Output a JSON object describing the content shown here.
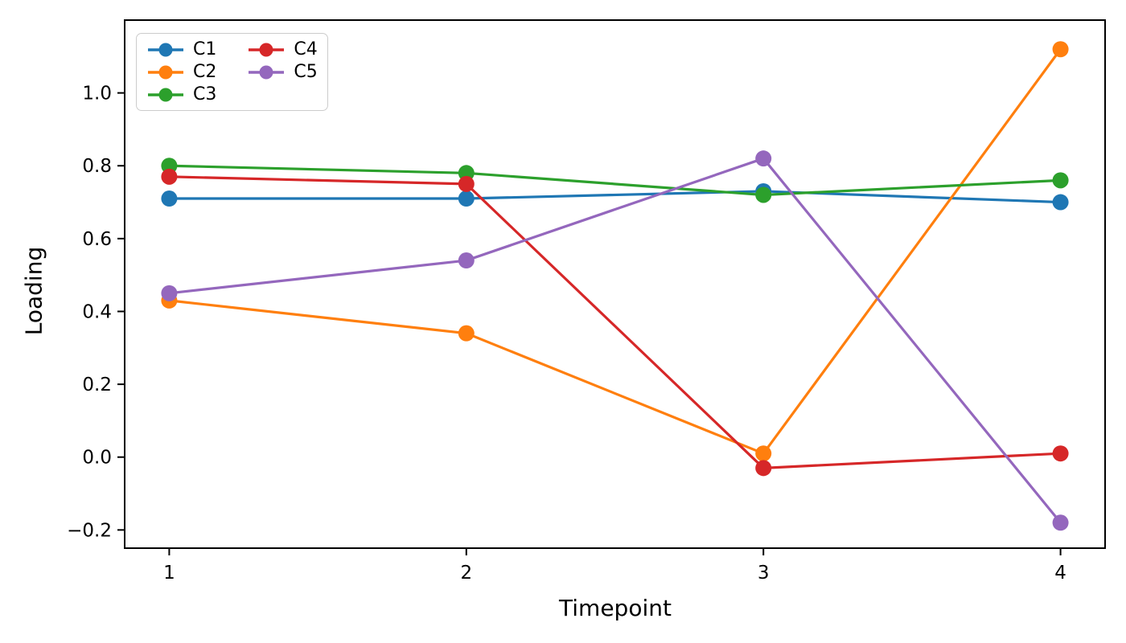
{
  "chart_data": {
    "type": "line",
    "title": "",
    "xlabel": "Timepoint",
    "ylabel": "Loading",
    "x": [
      1,
      2,
      3,
      4
    ],
    "series": [
      {
        "name": "C1",
        "color": "#1f77b4",
        "values": [
          0.71,
          0.71,
          0.73,
          0.7
        ]
      },
      {
        "name": "C2",
        "color": "#ff7f0e",
        "values": [
          0.43,
          0.34,
          0.01,
          1.12
        ]
      },
      {
        "name": "C3",
        "color": "#2ca02c",
        "values": [
          0.8,
          0.78,
          0.72,
          0.76
        ]
      },
      {
        "name": "C4",
        "color": "#d62728",
        "values": [
          0.77,
          0.75,
          -0.03,
          0.01
        ]
      },
      {
        "name": "C5",
        "color": "#9467bd",
        "values": [
          0.45,
          0.54,
          0.82,
          -0.18
        ]
      }
    ],
    "xticks": [
      {
        "value": 1,
        "label": "1"
      },
      {
        "value": 2,
        "label": "2"
      },
      {
        "value": 3,
        "label": "3"
      },
      {
        "value": 4,
        "label": "4"
      }
    ],
    "yticks": [
      {
        "value": 1.0,
        "label": "1.0"
      },
      {
        "value": 0.8,
        "label": "0.8"
      },
      {
        "value": 0.6,
        "label": "0.6"
      },
      {
        "value": 0.4,
        "label": "0.4"
      },
      {
        "value": 0.2,
        "label": "0.2"
      },
      {
        "value": 0.0,
        "label": "0.0"
      },
      {
        "value": -0.2,
        "label": "−0.2"
      }
    ],
    "xlim": [
      0.85,
      4.15
    ],
    "ylim": [
      -0.25,
      1.2
    ],
    "grid": false,
    "legend_position": "upper left",
    "axis_color": "#000000",
    "background_color": "#ffffff"
  }
}
